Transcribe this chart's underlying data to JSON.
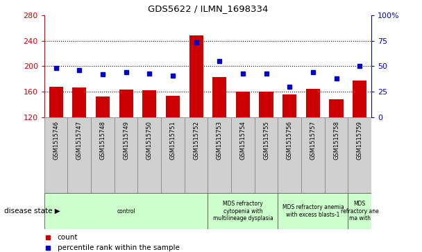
{
  "title": "GDS5622 / ILMN_1698334",
  "samples": [
    "GSM1515746",
    "GSM1515747",
    "GSM1515748",
    "GSM1515749",
    "GSM1515750",
    "GSM1515751",
    "GSM1515752",
    "GSM1515753",
    "GSM1515754",
    "GSM1515755",
    "GSM1515756",
    "GSM1515757",
    "GSM1515758",
    "GSM1515759"
  ],
  "counts": [
    168,
    167,
    152,
    163,
    162,
    153,
    248,
    183,
    160,
    160,
    156,
    164,
    148,
    178
  ],
  "percentiles": [
    48,
    46,
    42,
    44,
    43,
    41,
    73,
    55,
    43,
    43,
    30,
    44,
    38,
    50
  ],
  "ylim_left": [
    120,
    280
  ],
  "ylim_right": [
    0,
    100
  ],
  "yticks_left": [
    120,
    160,
    200,
    240,
    280
  ],
  "yticks_right": [
    0,
    25,
    50,
    75,
    100
  ],
  "bar_color": "#cc0000",
  "dot_color": "#0000cc",
  "grid_dotted_vals": [
    160,
    200,
    240
  ],
  "disease_groups": [
    {
      "label": "control",
      "start": 0,
      "end": 6
    },
    {
      "label": "MDS refractory\ncytopenia with\nmultilineage dysplasia",
      "start": 7,
      "end": 9
    },
    {
      "label": "MDS refractory anemia\nwith excess blasts-1",
      "start": 10,
      "end": 12
    },
    {
      "label": "MDS\nrefractory ane\nma with",
      "start": 13,
      "end": 13
    }
  ],
  "group_color": "#ccffcc",
  "sample_box_color": "#d0d0d0",
  "xlabel_disease": "disease state",
  "legend_count": "count",
  "legend_pct": "percentile rank within the sample"
}
